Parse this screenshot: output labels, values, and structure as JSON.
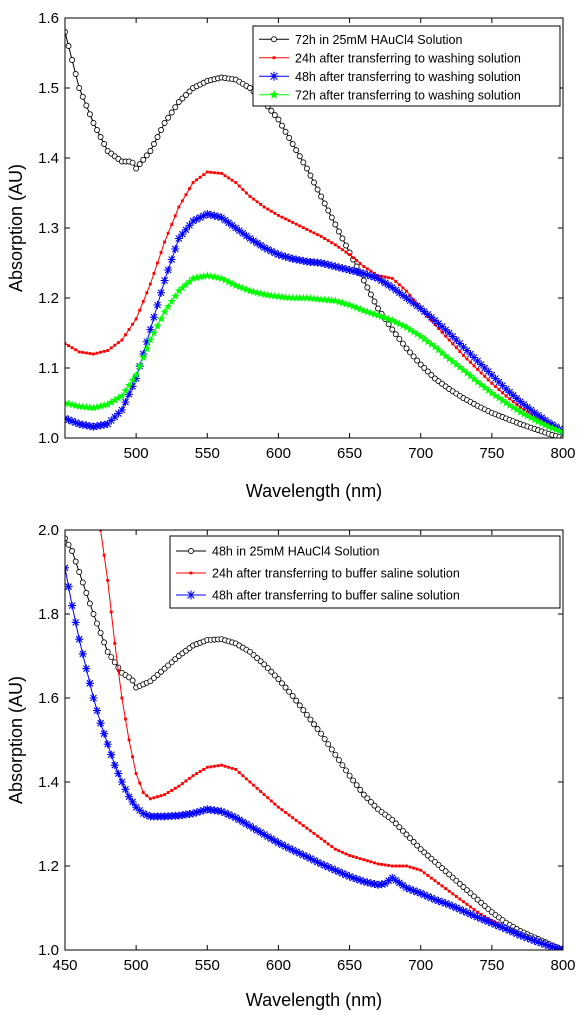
{
  "chart_data": [
    {
      "type": "scatter",
      "title": "",
      "xlabel": "Wavelength (nm)",
      "ylabel": "Absorption (AU)",
      "xlim": [
        450,
        800
      ],
      "ylim": [
        1.0,
        1.6
      ],
      "xticks": [
        "500",
        "550",
        "600",
        "650",
        "700",
        "750",
        "800"
      ],
      "yticks": [
        "1.0",
        "1.1",
        "1.2",
        "1.3",
        "1.4",
        "1.5",
        "1.6"
      ],
      "grid": false,
      "legend_position": "top-right",
      "series": [
        {
          "name": "72h in 25mM HAuCl4 Solution",
          "color": "#000000",
          "marker": "circle-open",
          "x": [
            450,
            455,
            460,
            470,
            480,
            490,
            497,
            500,
            510,
            520,
            530,
            540,
            550,
            560,
            570,
            580,
            590,
            600,
            610,
            620,
            630,
            640,
            650,
            660,
            670,
            680,
            690,
            700,
            710,
            720,
            730,
            740,
            750,
            760,
            770,
            780,
            790,
            800
          ],
          "y": [
            1.58,
            1.54,
            1.5,
            1.45,
            1.41,
            1.395,
            1.395,
            1.385,
            1.41,
            1.45,
            1.48,
            1.5,
            1.51,
            1.515,
            1.512,
            1.5,
            1.48,
            1.455,
            1.42,
            1.385,
            1.345,
            1.305,
            1.265,
            1.225,
            1.185,
            1.155,
            1.128,
            1.105,
            1.085,
            1.07,
            1.057,
            1.046,
            1.036,
            1.028,
            1.02,
            1.013,
            1.006,
            1.0
          ]
        },
        {
          "name": "24h after transferring to washing solution",
          "color": "#ff0000",
          "marker": "square-filled",
          "x": [
            450,
            460,
            470,
            480,
            490,
            500,
            510,
            520,
            530,
            540,
            550,
            560,
            570,
            580,
            590,
            600,
            610,
            620,
            630,
            640,
            650,
            660,
            670,
            680,
            690,
            700,
            710,
            720,
            730,
            740,
            750,
            760,
            770,
            780,
            790,
            800
          ],
          "y": [
            1.135,
            1.123,
            1.12,
            1.125,
            1.14,
            1.17,
            1.22,
            1.28,
            1.33,
            1.365,
            1.38,
            1.378,
            1.365,
            1.345,
            1.33,
            1.318,
            1.308,
            1.298,
            1.288,
            1.276,
            1.262,
            1.245,
            1.232,
            1.228,
            1.21,
            1.185,
            1.162,
            1.14,
            1.118,
            1.098,
            1.078,
            1.06,
            1.044,
            1.03,
            1.018,
            1.008
          ]
        },
        {
          "name": "48h after transferring to washing solution",
          "color": "#0000ff",
          "marker": "asterisk",
          "x": [
            450,
            460,
            470,
            480,
            490,
            500,
            510,
            520,
            530,
            540,
            550,
            560,
            570,
            580,
            590,
            600,
            610,
            620,
            630,
            640,
            650,
            660,
            670,
            680,
            690,
            700,
            710,
            720,
            730,
            740,
            750,
            760,
            770,
            780,
            790,
            800
          ],
          "y": [
            1.028,
            1.02,
            1.016,
            1.02,
            1.04,
            1.085,
            1.155,
            1.225,
            1.285,
            1.31,
            1.32,
            1.315,
            1.3,
            1.285,
            1.272,
            1.262,
            1.256,
            1.252,
            1.25,
            1.245,
            1.24,
            1.235,
            1.228,
            1.215,
            1.2,
            1.185,
            1.168,
            1.15,
            1.13,
            1.11,
            1.09,
            1.07,
            1.052,
            1.036,
            1.022,
            1.01
          ]
        },
        {
          "name": "72h after transferring to washing solution",
          "color": "#00ff00",
          "marker": "star",
          "x": [
            450,
            460,
            470,
            480,
            490,
            500,
            510,
            520,
            530,
            540,
            550,
            560,
            570,
            580,
            590,
            600,
            610,
            620,
            630,
            640,
            650,
            660,
            670,
            680,
            690,
            700,
            710,
            720,
            730,
            740,
            750,
            760,
            770,
            780,
            790,
            800
          ],
          "y": [
            1.05,
            1.045,
            1.043,
            1.048,
            1.06,
            1.09,
            1.14,
            1.18,
            1.21,
            1.228,
            1.232,
            1.228,
            1.218,
            1.21,
            1.205,
            1.202,
            1.2,
            1.2,
            1.198,
            1.196,
            1.19,
            1.182,
            1.175,
            1.168,
            1.158,
            1.145,
            1.13,
            1.113,
            1.097,
            1.08,
            1.064,
            1.05,
            1.037,
            1.026,
            1.016,
            1.008
          ]
        }
      ]
    },
    {
      "type": "scatter",
      "title": "",
      "xlabel": "Wavelength (nm)",
      "ylabel": "Absorption (AU)",
      "xlim": [
        450,
        800
      ],
      "ylim": [
        1.0,
        2.0
      ],
      "xticks": [
        "450",
        "500",
        "550",
        "600",
        "650",
        "700",
        "750",
        "800"
      ],
      "yticks": [
        "1.0",
        "1.2",
        "1.4",
        "1.6",
        "1.8",
        "2.0"
      ],
      "grid": false,
      "legend_position": "top-right",
      "series": [
        {
          "name": "48h in 25mM HAuCl4 Solution",
          "color": "#000000",
          "marker": "circle-open",
          "x": [
            450,
            455,
            460,
            470,
            480,
            490,
            497,
            500,
            510,
            520,
            530,
            540,
            550,
            560,
            570,
            580,
            590,
            600,
            610,
            620,
            630,
            640,
            650,
            660,
            670,
            680,
            690,
            700,
            710,
            720,
            730,
            740,
            750,
            760,
            770,
            780,
            790,
            800
          ],
          "y": [
            1.98,
            1.95,
            1.9,
            1.8,
            1.71,
            1.66,
            1.645,
            1.625,
            1.64,
            1.67,
            1.7,
            1.725,
            1.738,
            1.74,
            1.73,
            1.71,
            1.68,
            1.645,
            1.605,
            1.56,
            1.515,
            1.465,
            1.415,
            1.37,
            1.335,
            1.31,
            1.275,
            1.24,
            1.21,
            1.18,
            1.15,
            1.12,
            1.09,
            1.065,
            1.045,
            1.03,
            1.015,
            1.0
          ]
        },
        {
          "name": "24h after transferring to buffer saline solution",
          "color": "#ff0000",
          "marker": "square-filled",
          "x": [
            475,
            480,
            485,
            490,
            495,
            500,
            505,
            510,
            520,
            530,
            540,
            550,
            560,
            570,
            580,
            590,
            600,
            610,
            620,
            630,
            640,
            650,
            660,
            670,
            680,
            690,
            700,
            710,
            720,
            730,
            740,
            750,
            760,
            770,
            780,
            790,
            800
          ],
          "y": [
            2.0,
            1.88,
            1.73,
            1.6,
            1.5,
            1.42,
            1.375,
            1.36,
            1.37,
            1.39,
            1.415,
            1.435,
            1.44,
            1.43,
            1.4,
            1.37,
            1.34,
            1.315,
            1.29,
            1.265,
            1.24,
            1.225,
            1.215,
            1.205,
            1.2,
            1.2,
            1.19,
            1.165,
            1.14,
            1.115,
            1.09,
            1.07,
            1.05,
            1.035,
            1.022,
            1.011,
            1.0
          ]
        },
        {
          "name": "48h after transferring to buffer saline solution",
          "color": "#0000ff",
          "marker": "asterisk",
          "x": [
            450,
            455,
            460,
            465,
            470,
            475,
            480,
            485,
            490,
            495,
            500,
            505,
            510,
            520,
            530,
            540,
            550,
            560,
            570,
            580,
            590,
            600,
            610,
            620,
            630,
            640,
            650,
            660,
            670,
            675,
            680,
            685,
            690,
            700,
            710,
            720,
            730,
            740,
            750,
            760,
            770,
            780,
            790,
            800
          ],
          "y": [
            1.91,
            1.82,
            1.74,
            1.67,
            1.6,
            1.54,
            1.49,
            1.44,
            1.4,
            1.365,
            1.34,
            1.325,
            1.318,
            1.318,
            1.32,
            1.325,
            1.335,
            1.33,
            1.315,
            1.295,
            1.275,
            1.255,
            1.238,
            1.222,
            1.205,
            1.19,
            1.175,
            1.163,
            1.155,
            1.158,
            1.172,
            1.16,
            1.148,
            1.135,
            1.12,
            1.108,
            1.093,
            1.078,
            1.064,
            1.05,
            1.035,
            1.022,
            1.01,
            1.0
          ]
        }
      ]
    }
  ]
}
